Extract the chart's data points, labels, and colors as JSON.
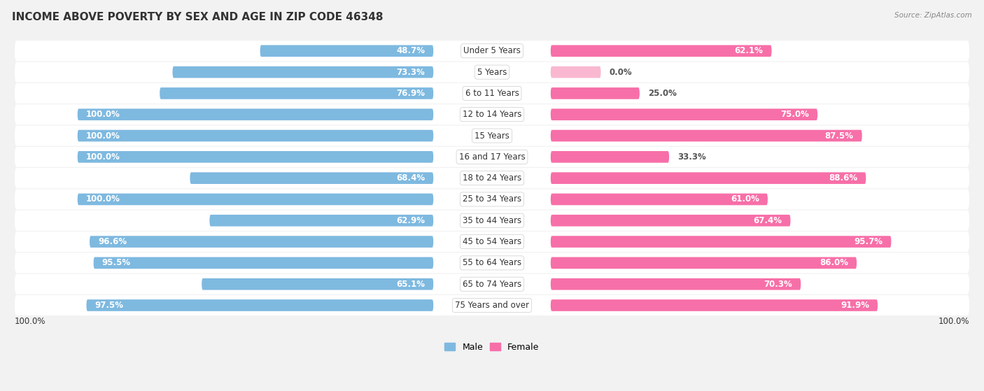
{
  "title": "INCOME ABOVE POVERTY BY SEX AND AGE IN ZIP CODE 46348",
  "source": "Source: ZipAtlas.com",
  "categories": [
    "Under 5 Years",
    "5 Years",
    "6 to 11 Years",
    "12 to 14 Years",
    "15 Years",
    "16 and 17 Years",
    "18 to 24 Years",
    "25 to 34 Years",
    "35 to 44 Years",
    "45 to 54 Years",
    "55 to 64 Years",
    "65 to 74 Years",
    "75 Years and over"
  ],
  "male_values": [
    48.7,
    73.3,
    76.9,
    100.0,
    100.0,
    100.0,
    68.4,
    100.0,
    62.9,
    96.6,
    95.5,
    65.1,
    97.5
  ],
  "female_values": [
    62.1,
    0.0,
    25.0,
    75.0,
    87.5,
    33.3,
    88.6,
    61.0,
    67.4,
    95.7,
    86.0,
    70.3,
    91.9
  ],
  "male_color": "#7eb9e0",
  "female_color": "#f76fa8",
  "female_light_color": "#f9b8d0",
  "bg_color": "#f2f2f2",
  "row_bg_color": "#ffffff",
  "title_fontsize": 11,
  "label_fontsize": 8.5,
  "cat_fontsize": 8.5,
  "bar_height": 0.55,
  "legend_bottom_text": "100.0%"
}
